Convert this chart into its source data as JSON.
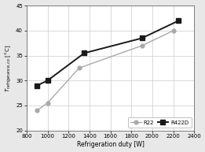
{
  "R22_x": [
    900,
    1000,
    1300,
    1900,
    2200
  ],
  "R22_y": [
    24.0,
    25.5,
    32.5,
    37.0,
    40.0
  ],
  "R422D_x": [
    900,
    1000,
    1350,
    1900,
    2250
  ],
  "R422D_y": [
    29.0,
    30.0,
    35.5,
    38.5,
    42.0
  ],
  "R22_color": "#aaaaaa",
  "R422D_color": "#1a1a1a",
  "xlabel": "Refrigeration duty [W]",
  "xlim": [
    800,
    2400
  ],
  "ylim": [
    20,
    45
  ],
  "xticks": [
    800,
    1000,
    1200,
    1400,
    1600,
    1800,
    2000,
    2200,
    2400
  ],
  "yticks": [
    20,
    25,
    30,
    35,
    40,
    45
  ],
  "fig_facecolor": "#e8e8e8",
  "ax_facecolor": "#ffffff",
  "grid_color": "#cccccc"
}
